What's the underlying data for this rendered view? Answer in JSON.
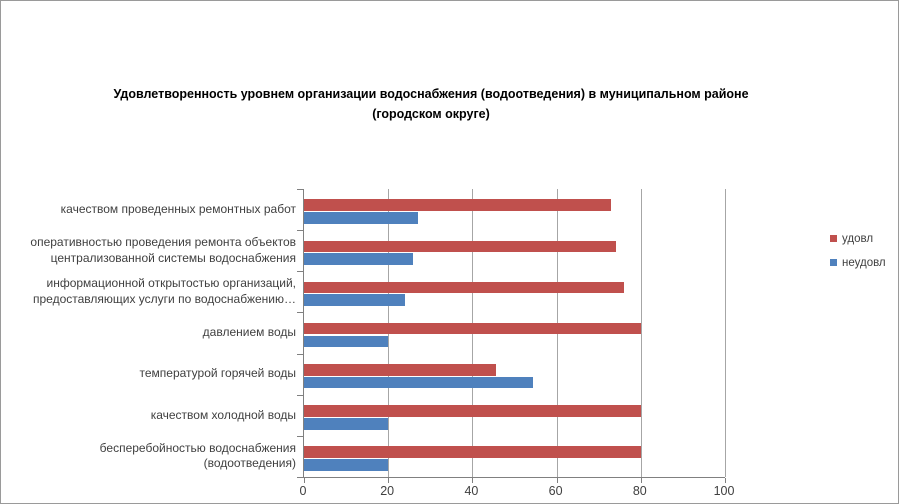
{
  "chart": {
    "title_display": "Удовлетворенность уровнем организации водоснабжения (водоотведения) в муниципальном районе\n(городском округе)"
  },
  "chart_data": {
    "type": "bar",
    "orientation": "horizontal",
    "title": "Удовлетворенность уровнем организации водоснабжения (водоотведения) в муниципальном районе (городском округе)",
    "categories": [
      "качеством проведенных ремонтных работ",
      "оперативностью проведения ремонта объектов\nцентрализованной системы водоснабжения",
      "информационной открытостью организаций,\nпредоставляющих услуги по водоснабжению…",
      "давлением воды",
      "температурой горячей воды",
      "качеством холодной воды",
      "бесперебойностью водоснабжения\n(водоотведения)"
    ],
    "series": [
      {
        "name": "удовл",
        "color": "#c0504d",
        "values": [
          73,
          74,
          76,
          80,
          45.5,
          80,
          80
        ]
      },
      {
        "name": "неудовл",
        "color": "#4f81bd",
        "values": [
          27,
          26,
          24,
          20,
          54.5,
          20,
          20
        ]
      }
    ],
    "xlim": [
      0,
      100
    ],
    "x_ticks": [
      0,
      20,
      40,
      60,
      80,
      100
    ],
    "grid": true,
    "legend_position": "right",
    "colors": {
      "gridline": "#a6a6a6",
      "axis": "#808080",
      "label_text": "#404040",
      "title_text": "#000000"
    }
  }
}
